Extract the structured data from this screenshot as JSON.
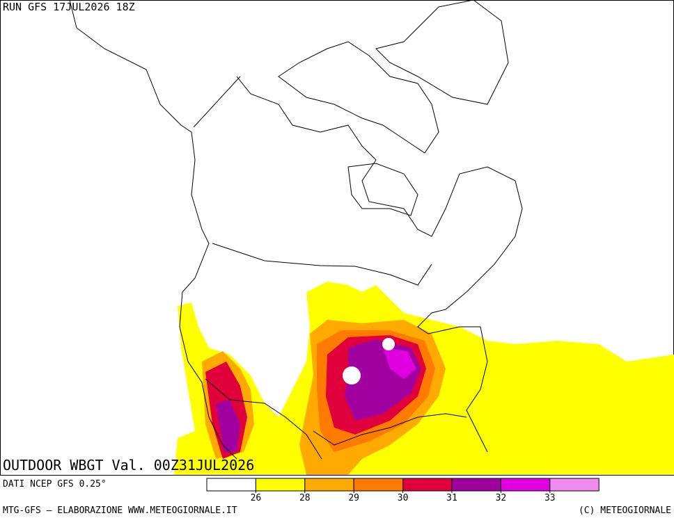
{
  "header": {
    "run": "RUN GFS 17JUL2026 18Z"
  },
  "map": {
    "title": "OUTDOOR WBGT Val. 00Z31JUL2026"
  },
  "legend": {
    "colors": [
      "#ffffff",
      "#ffff00",
      "#ffaa00",
      "#ff7a00",
      "#e0003c",
      "#a000a0",
      "#e000e0",
      "#f08cf0"
    ],
    "ticks": [
      26,
      28,
      29,
      30,
      31,
      32,
      33
    ]
  },
  "footer": {
    "source": "DATI NCEP GFS 0.25°",
    "credit": "MTG-GFS — ELABORAZIONE WWW.METEOGIORNALE.IT",
    "copyright": "(C) METEOGIORNALE"
  }
}
